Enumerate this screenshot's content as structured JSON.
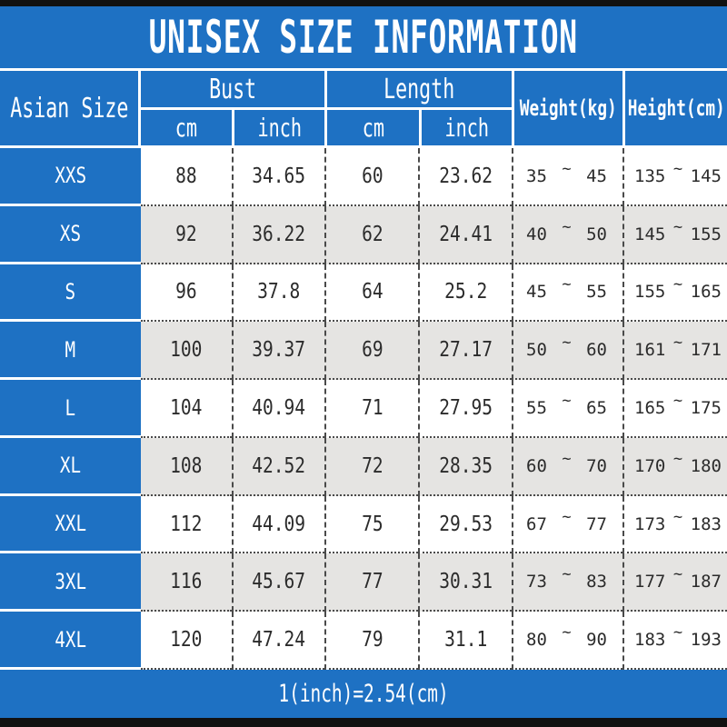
{
  "title": "UNISEX SIZE INFORMATION",
  "footer_note": "1(inch)=2.54(cm)",
  "table": {
    "corner_header": "Asian Size",
    "groups": [
      {
        "label": "Bust",
        "sub_cols": [
          "cm",
          "inch"
        ]
      },
      {
        "label": "Length",
        "sub_cols": [
          "cm",
          "inch"
        ]
      }
    ],
    "weight_header": "Weight(kg)",
    "height_header": "Height(cm)",
    "range_separator": "~",
    "rows": [
      {
        "size": "XXS",
        "bust_cm": "88",
        "bust_inch": "34.65",
        "length_cm": "60",
        "length_inch": "23.62",
        "weight_min": "35",
        "weight_max": "45",
        "height_min": "135",
        "height_max": "145"
      },
      {
        "size": "XS",
        "bust_cm": "92",
        "bust_inch": "36.22",
        "length_cm": "62",
        "length_inch": "24.41",
        "weight_min": "40",
        "weight_max": "50",
        "height_min": "145",
        "height_max": "155"
      },
      {
        "size": "S",
        "bust_cm": "96",
        "bust_inch": "37.8",
        "length_cm": "64",
        "length_inch": "25.2",
        "weight_min": "45",
        "weight_max": "55",
        "height_min": "155",
        "height_max": "165"
      },
      {
        "size": "M",
        "bust_cm": "100",
        "bust_inch": "39.37",
        "length_cm": "69",
        "length_inch": "27.17",
        "weight_min": "50",
        "weight_max": "60",
        "height_min": "161",
        "height_max": "171"
      },
      {
        "size": "L",
        "bust_cm": "104",
        "bust_inch": "40.94",
        "length_cm": "71",
        "length_inch": "27.95",
        "weight_min": "55",
        "weight_max": "65",
        "height_min": "165",
        "height_max": "175"
      },
      {
        "size": "XL",
        "bust_cm": "108",
        "bust_inch": "42.52",
        "length_cm": "72",
        "length_inch": "28.35",
        "weight_min": "60",
        "weight_max": "70",
        "height_min": "170",
        "height_max": "180"
      },
      {
        "size": "XXL",
        "bust_cm": "112",
        "bust_inch": "44.09",
        "length_cm": "75",
        "length_inch": "29.53",
        "weight_min": "67",
        "weight_max": "77",
        "height_min": "173",
        "height_max": "183"
      },
      {
        "size": "3XL",
        "bust_cm": "116",
        "bust_inch": "45.67",
        "length_cm": "77",
        "length_inch": "30.31",
        "weight_min": "73",
        "weight_max": "83",
        "height_min": "177",
        "height_max": "187"
      },
      {
        "size": "4XL",
        "bust_cm": "120",
        "bust_inch": "47.24",
        "length_cm": "79",
        "length_inch": "31.1",
        "weight_min": "80",
        "weight_max": "90",
        "height_min": "183",
        "height_max": "193"
      }
    ]
  },
  "colors": {
    "blue": "#1e71c3",
    "alt_row": "#e5e4e2",
    "edge_bar": "#111111",
    "data_text": "#2b2b2b"
  }
}
